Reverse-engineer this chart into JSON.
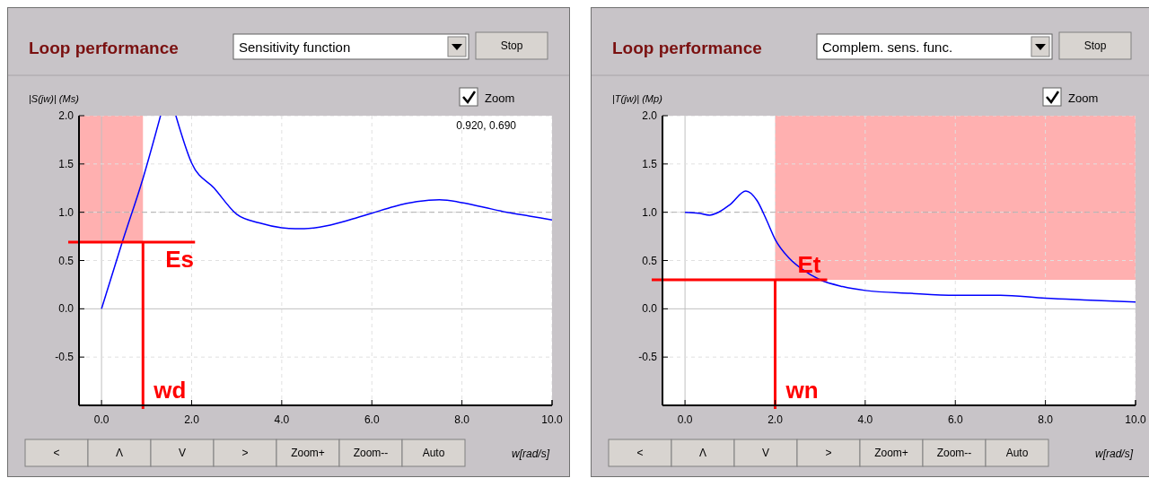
{
  "chart_data": [
    {
      "type": "line",
      "title": "Loop performance",
      "ylabel": "|S(jw)| (Ms)",
      "xlabel": "w[rad/s]",
      "series": [
        {
          "color": "#0000ff",
          "x": [
            0,
            0.46,
            0.92,
            1.31,
            1.5,
            1.65,
            2.0,
            2.5,
            3.0,
            3.5,
            4.0,
            4.3,
            4.5,
            5.0,
            5.5,
            6.0,
            6.5,
            7.0,
            7.5,
            8.0,
            8.5,
            9.0,
            9.5,
            10.0
          ],
          "values": [
            0,
            0.69,
            1.35,
            2.0,
            null,
            2.0,
            1.51,
            1.25,
            0.98,
            0.89,
            0.84,
            0.83,
            0.83,
            0.86,
            0.92,
            0.99,
            1.06,
            1.11,
            1.13,
            1.1,
            1.05,
            1.0,
            0.96,
            0.92
          ]
        }
      ],
      "xlim": [
        -0.5,
        10
      ],
      "xticks": [
        {
          "value": 0,
          "label": "0.0"
        },
        {
          "value": 2,
          "label": "2.0"
        },
        {
          "value": 4,
          "label": "4.0"
        },
        {
          "value": 6,
          "label": "6.0"
        },
        {
          "value": 8,
          "label": "8.0"
        },
        {
          "value": 10,
          "label": "10.0"
        }
      ],
      "ylim": [
        -1,
        2
      ],
      "yticks": [
        {
          "value": -0.5,
          "label": "-0.5"
        },
        {
          "value": 0,
          "label": "0.0"
        },
        {
          "value": 0.5,
          "label": "0.5"
        },
        {
          "value": 1,
          "label": "1.0"
        },
        {
          "value": 1.5,
          "label": "1.5"
        },
        {
          "value": 2,
          "label": "2.0"
        }
      ],
      "grid": true,
      "marker": "none",
      "line_style": "solid",
      "ref_lines": [
        {
          "axis": "y",
          "value": 1,
          "color": "#b0b0b0",
          "line_style": "dashed"
        },
        {
          "axis": "y",
          "value": 0.69,
          "label": "Es",
          "color": "#ff0000",
          "line_style": "solid"
        },
        {
          "axis": "x",
          "value": 0.92,
          "label": "wd",
          "color": "#ff0000",
          "line_style": "solid"
        }
      ],
      "bands": [
        {
          "axis": "x",
          "from": -0.5,
          "to": 0.92,
          "color": "#ffb0b0"
        }
      ],
      "annotations": [
        "Sensitivity function",
        "Stop",
        "Zoom",
        "0.920, 0.690",
        "<",
        "Λ",
        "V",
        ">",
        "Zoom+",
        "Zoom--",
        "Auto"
      ]
    },
    {
      "type": "line",
      "title": "Loop performance",
      "ylabel": "|T(jw)| (Mp)",
      "xlabel": "w[rad/s]",
      "series": [
        {
          "color": "#0000ff",
          "x": [
            0,
            0.3,
            0.55,
            0.7,
            1.0,
            1.35,
            1.6,
            1.8,
            2.0,
            2.3,
            2.6,
            3.0,
            3.5,
            4.0,
            5.0,
            6.0,
            7.0,
            8.0,
            9.0,
            10.0
          ],
          "values": [
            1.0,
            0.99,
            0.97,
            0.99,
            1.08,
            1.22,
            1.12,
            0.93,
            0.72,
            0.53,
            0.41,
            0.3,
            0.23,
            0.19,
            0.16,
            0.14,
            0.14,
            0.11,
            0.09,
            0.07
          ]
        }
      ],
      "xlim": [
        -0.5,
        10
      ],
      "xticks": [
        {
          "value": 0,
          "label": "0.0"
        },
        {
          "value": 2,
          "label": "2.0"
        },
        {
          "value": 4,
          "label": "4.0"
        },
        {
          "value": 6,
          "label": "6.0"
        },
        {
          "value": 8,
          "label": "8.0"
        },
        {
          "value": 10,
          "label": "10.0"
        }
      ],
      "ylim": [
        -1,
        2
      ],
      "yticks": [
        {
          "value": -0.5,
          "label": "-0.5"
        },
        {
          "value": 0,
          "label": "0.0"
        },
        {
          "value": 0.5,
          "label": "0.5"
        },
        {
          "value": 1,
          "label": "1.0"
        },
        {
          "value": 1.5,
          "label": "1.5"
        },
        {
          "value": 2,
          "label": "2.0"
        }
      ],
      "grid": true,
      "marker": "none",
      "line_style": "solid",
      "ref_lines": [
        {
          "axis": "y",
          "value": 1,
          "color": "#b0b0b0",
          "line_style": "dashed"
        },
        {
          "axis": "y",
          "value": 0.3,
          "label": "Et",
          "color": "#ff0000",
          "line_style": "solid"
        },
        {
          "axis": "x",
          "value": 2,
          "label": "wn",
          "color": "#ff0000",
          "line_style": "solid"
        }
      ],
      "bands": [
        {
          "axis": "x",
          "from": 2,
          "to": 10,
          "color": "#ffb0b0"
        }
      ],
      "annotations": [
        "Complem. sens. func.",
        "Stop",
        "Zoom",
        "<",
        "Λ",
        "V",
        ">",
        "Zoom+",
        "Zoom--",
        "Auto"
      ]
    }
  ]
}
